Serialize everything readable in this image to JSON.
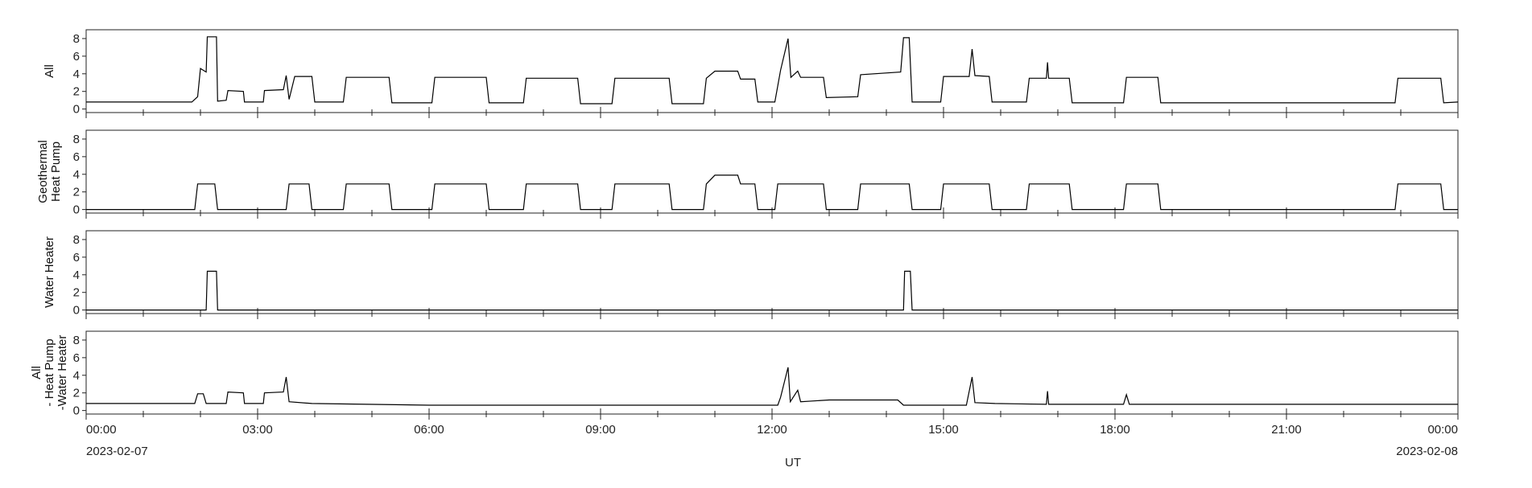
{
  "chart_data": {
    "type": "line",
    "xlabel": "UT",
    "x_ticks": [
      "00:00",
      "03:00",
      "06:00",
      "09:00",
      "12:00",
      "15:00",
      "18:00",
      "21:00",
      "00:00"
    ],
    "x_date_start": "2023-02-07",
    "x_date_end": "2023-02-08",
    "xlim_hours": [
      0,
      24
    ],
    "y_ticks": [
      0,
      2,
      4,
      6,
      8
    ],
    "ylim": [
      -0.4,
      9
    ],
    "grid": false,
    "line_color": "#000000",
    "panels": [
      {
        "ylabel": [
          "All"
        ],
        "series": [
          {
            "x": 0.0,
            "y": 0.8
          },
          {
            "x": 1.85,
            "y": 0.8
          },
          {
            "x": 1.95,
            "y": 1.4
          },
          {
            "x": 2.0,
            "y": 4.6
          },
          {
            "x": 2.1,
            "y": 4.2
          },
          {
            "x": 2.12,
            "y": 8.2
          },
          {
            "x": 2.28,
            "y": 8.2
          },
          {
            "x": 2.3,
            "y": 0.9
          },
          {
            "x": 2.45,
            "y": 1.0
          },
          {
            "x": 2.48,
            "y": 2.1
          },
          {
            "x": 2.75,
            "y": 2.0
          },
          {
            "x": 2.77,
            "y": 0.8
          },
          {
            "x": 3.1,
            "y": 0.8
          },
          {
            "x": 3.12,
            "y": 2.1
          },
          {
            "x": 3.45,
            "y": 2.2
          },
          {
            "x": 3.5,
            "y": 3.8
          },
          {
            "x": 3.55,
            "y": 1.1
          },
          {
            "x": 3.65,
            "y": 3.7
          },
          {
            "x": 3.95,
            "y": 3.7
          },
          {
            "x": 4.0,
            "y": 0.8
          },
          {
            "x": 4.5,
            "y": 0.8
          },
          {
            "x": 4.55,
            "y": 3.6
          },
          {
            "x": 5.3,
            "y": 3.6
          },
          {
            "x": 5.35,
            "y": 0.7
          },
          {
            "x": 6.05,
            "y": 0.7
          },
          {
            "x": 6.1,
            "y": 3.6
          },
          {
            "x": 7.0,
            "y": 3.6
          },
          {
            "x": 7.05,
            "y": 0.7
          },
          {
            "x": 7.65,
            "y": 0.7
          },
          {
            "x": 7.7,
            "y": 3.5
          },
          {
            "x": 8.6,
            "y": 3.5
          },
          {
            "x": 8.65,
            "y": 0.6
          },
          {
            "x": 9.2,
            "y": 0.6
          },
          {
            "x": 9.25,
            "y": 3.5
          },
          {
            "x": 10.2,
            "y": 3.5
          },
          {
            "x": 10.25,
            "y": 0.6
          },
          {
            "x": 10.8,
            "y": 0.6
          },
          {
            "x": 10.85,
            "y": 3.5
          },
          {
            "x": 11.0,
            "y": 4.3
          },
          {
            "x": 11.4,
            "y": 4.3
          },
          {
            "x": 11.45,
            "y": 3.4
          },
          {
            "x": 11.7,
            "y": 3.4
          },
          {
            "x": 11.75,
            "y": 0.8
          },
          {
            "x": 12.05,
            "y": 0.8
          },
          {
            "x": 12.15,
            "y": 4.4
          },
          {
            "x": 12.28,
            "y": 8.0
          },
          {
            "x": 12.33,
            "y": 3.6
          },
          {
            "x": 12.45,
            "y": 4.3
          },
          {
            "x": 12.5,
            "y": 3.6
          },
          {
            "x": 12.9,
            "y": 3.6
          },
          {
            "x": 12.95,
            "y": 1.3
          },
          {
            "x": 13.5,
            "y": 1.4
          },
          {
            "x": 13.55,
            "y": 3.9
          },
          {
            "x": 14.25,
            "y": 4.2
          },
          {
            "x": 14.3,
            "y": 8.1
          },
          {
            "x": 14.4,
            "y": 8.1
          },
          {
            "x": 14.45,
            "y": 0.8
          },
          {
            "x": 14.95,
            "y": 0.8
          },
          {
            "x": 15.0,
            "y": 3.7
          },
          {
            "x": 15.45,
            "y": 3.7
          },
          {
            "x": 15.5,
            "y": 6.8
          },
          {
            "x": 15.55,
            "y": 3.8
          },
          {
            "x": 15.8,
            "y": 3.7
          },
          {
            "x": 15.85,
            "y": 0.8
          },
          {
            "x": 16.45,
            "y": 0.8
          },
          {
            "x": 16.5,
            "y": 3.5
          },
          {
            "x": 16.8,
            "y": 3.5
          },
          {
            "x": 16.82,
            "y": 5.3
          },
          {
            "x": 16.84,
            "y": 3.5
          },
          {
            "x": 17.2,
            "y": 3.5
          },
          {
            "x": 17.25,
            "y": 0.7
          },
          {
            "x": 18.15,
            "y": 0.7
          },
          {
            "x": 18.2,
            "y": 3.6
          },
          {
            "x": 18.75,
            "y": 3.6
          },
          {
            "x": 18.8,
            "y": 0.7
          },
          {
            "x": 22.9,
            "y": 0.7
          },
          {
            "x": 22.95,
            "y": 3.5
          },
          {
            "x": 23.7,
            "y": 3.5
          },
          {
            "x": 23.75,
            "y": 0.7
          },
          {
            "x": 24.0,
            "y": 0.8
          }
        ]
      },
      {
        "ylabel": [
          "Geothermal",
          "Heat Pump"
        ],
        "series": [
          {
            "x": 0.0,
            "y": 0.0
          },
          {
            "x": 1.9,
            "y": 0.0
          },
          {
            "x": 1.95,
            "y": 2.9
          },
          {
            "x": 2.25,
            "y": 2.9
          },
          {
            "x": 2.3,
            "y": 0.0
          },
          {
            "x": 3.5,
            "y": 0.0
          },
          {
            "x": 3.55,
            "y": 2.9
          },
          {
            "x": 3.9,
            "y": 2.9
          },
          {
            "x": 3.95,
            "y": 0.0
          },
          {
            "x": 4.5,
            "y": 0.0
          },
          {
            "x": 4.55,
            "y": 2.9
          },
          {
            "x": 5.3,
            "y": 2.9
          },
          {
            "x": 5.35,
            "y": 0.0
          },
          {
            "x": 6.05,
            "y": 0.0
          },
          {
            "x": 6.1,
            "y": 2.9
          },
          {
            "x": 7.0,
            "y": 2.9
          },
          {
            "x": 7.05,
            "y": 0.0
          },
          {
            "x": 7.65,
            "y": 0.0
          },
          {
            "x": 7.7,
            "y": 2.9
          },
          {
            "x": 8.6,
            "y": 2.9
          },
          {
            "x": 8.65,
            "y": 0.0
          },
          {
            "x": 9.2,
            "y": 0.0
          },
          {
            "x": 9.25,
            "y": 2.9
          },
          {
            "x": 10.2,
            "y": 2.9
          },
          {
            "x": 10.25,
            "y": 0.0
          },
          {
            "x": 10.8,
            "y": 0.0
          },
          {
            "x": 10.85,
            "y": 2.9
          },
          {
            "x": 11.0,
            "y": 3.9
          },
          {
            "x": 11.4,
            "y": 3.9
          },
          {
            "x": 11.45,
            "y": 2.9
          },
          {
            "x": 11.7,
            "y": 2.9
          },
          {
            "x": 11.75,
            "y": 0.0
          },
          {
            "x": 12.05,
            "y": 0.0
          },
          {
            "x": 12.1,
            "y": 2.9
          },
          {
            "x": 12.9,
            "y": 2.9
          },
          {
            "x": 12.95,
            "y": 0.0
          },
          {
            "x": 13.5,
            "y": 0.0
          },
          {
            "x": 13.55,
            "y": 2.9
          },
          {
            "x": 14.4,
            "y": 2.9
          },
          {
            "x": 14.45,
            "y": 0.0
          },
          {
            "x": 14.95,
            "y": 0.0
          },
          {
            "x": 15.0,
            "y": 2.9
          },
          {
            "x": 15.8,
            "y": 2.9
          },
          {
            "x": 15.85,
            "y": 0.0
          },
          {
            "x": 16.45,
            "y": 0.0
          },
          {
            "x": 16.5,
            "y": 2.9
          },
          {
            "x": 17.2,
            "y": 2.9
          },
          {
            "x": 17.25,
            "y": 0.0
          },
          {
            "x": 18.15,
            "y": 0.0
          },
          {
            "x": 18.2,
            "y": 2.9
          },
          {
            "x": 18.75,
            "y": 2.9
          },
          {
            "x": 18.8,
            "y": 0.0
          },
          {
            "x": 22.9,
            "y": 0.0
          },
          {
            "x": 22.95,
            "y": 2.9
          },
          {
            "x": 23.7,
            "y": 2.9
          },
          {
            "x": 23.75,
            "y": 0.0
          },
          {
            "x": 24.0,
            "y": 0.0
          }
        ]
      },
      {
        "ylabel": [
          "Water Heater"
        ],
        "series": [
          {
            "x": 0.0,
            "y": 0.0
          },
          {
            "x": 2.1,
            "y": 0.0
          },
          {
            "x": 2.12,
            "y": 4.4
          },
          {
            "x": 2.28,
            "y": 4.4
          },
          {
            "x": 2.3,
            "y": 0.0
          },
          {
            "x": 14.3,
            "y": 0.0
          },
          {
            "x": 14.32,
            "y": 4.4
          },
          {
            "x": 14.42,
            "y": 4.4
          },
          {
            "x": 14.45,
            "y": 0.0
          },
          {
            "x": 24.0,
            "y": 0.0
          }
        ]
      },
      {
        "ylabel": [
          "All",
          "- Heat Pump",
          "-Water Heater"
        ],
        "series": [
          {
            "x": 0.0,
            "y": 0.8
          },
          {
            "x": 1.9,
            "y": 0.8
          },
          {
            "x": 1.95,
            "y": 1.9
          },
          {
            "x": 2.05,
            "y": 1.9
          },
          {
            "x": 2.1,
            "y": 0.8
          },
          {
            "x": 2.45,
            "y": 0.8
          },
          {
            "x": 2.48,
            "y": 2.1
          },
          {
            "x": 2.75,
            "y": 2.0
          },
          {
            "x": 2.77,
            "y": 0.8
          },
          {
            "x": 3.1,
            "y": 0.8
          },
          {
            "x": 3.12,
            "y": 2.0
          },
          {
            "x": 3.45,
            "y": 2.1
          },
          {
            "x": 3.5,
            "y": 3.8
          },
          {
            "x": 3.55,
            "y": 1.0
          },
          {
            "x": 3.95,
            "y": 0.8
          },
          {
            "x": 6.0,
            "y": 0.6
          },
          {
            "x": 12.1,
            "y": 0.6
          },
          {
            "x": 12.15,
            "y": 1.5
          },
          {
            "x": 12.28,
            "y": 4.9
          },
          {
            "x": 12.32,
            "y": 1.0
          },
          {
            "x": 12.45,
            "y": 2.3
          },
          {
            "x": 12.5,
            "y": 1.0
          },
          {
            "x": 13.0,
            "y": 1.2
          },
          {
            "x": 14.2,
            "y": 1.2
          },
          {
            "x": 14.3,
            "y": 0.6
          },
          {
            "x": 15.4,
            "y": 0.6
          },
          {
            "x": 15.5,
            "y": 3.8
          },
          {
            "x": 15.55,
            "y": 0.9
          },
          {
            "x": 15.9,
            "y": 0.8
          },
          {
            "x": 16.8,
            "y": 0.7
          },
          {
            "x": 16.82,
            "y": 2.2
          },
          {
            "x": 16.84,
            "y": 0.7
          },
          {
            "x": 18.15,
            "y": 0.7
          },
          {
            "x": 18.2,
            "y": 1.8
          },
          {
            "x": 18.25,
            "y": 0.7
          },
          {
            "x": 24.0,
            "y": 0.7
          }
        ]
      }
    ]
  }
}
